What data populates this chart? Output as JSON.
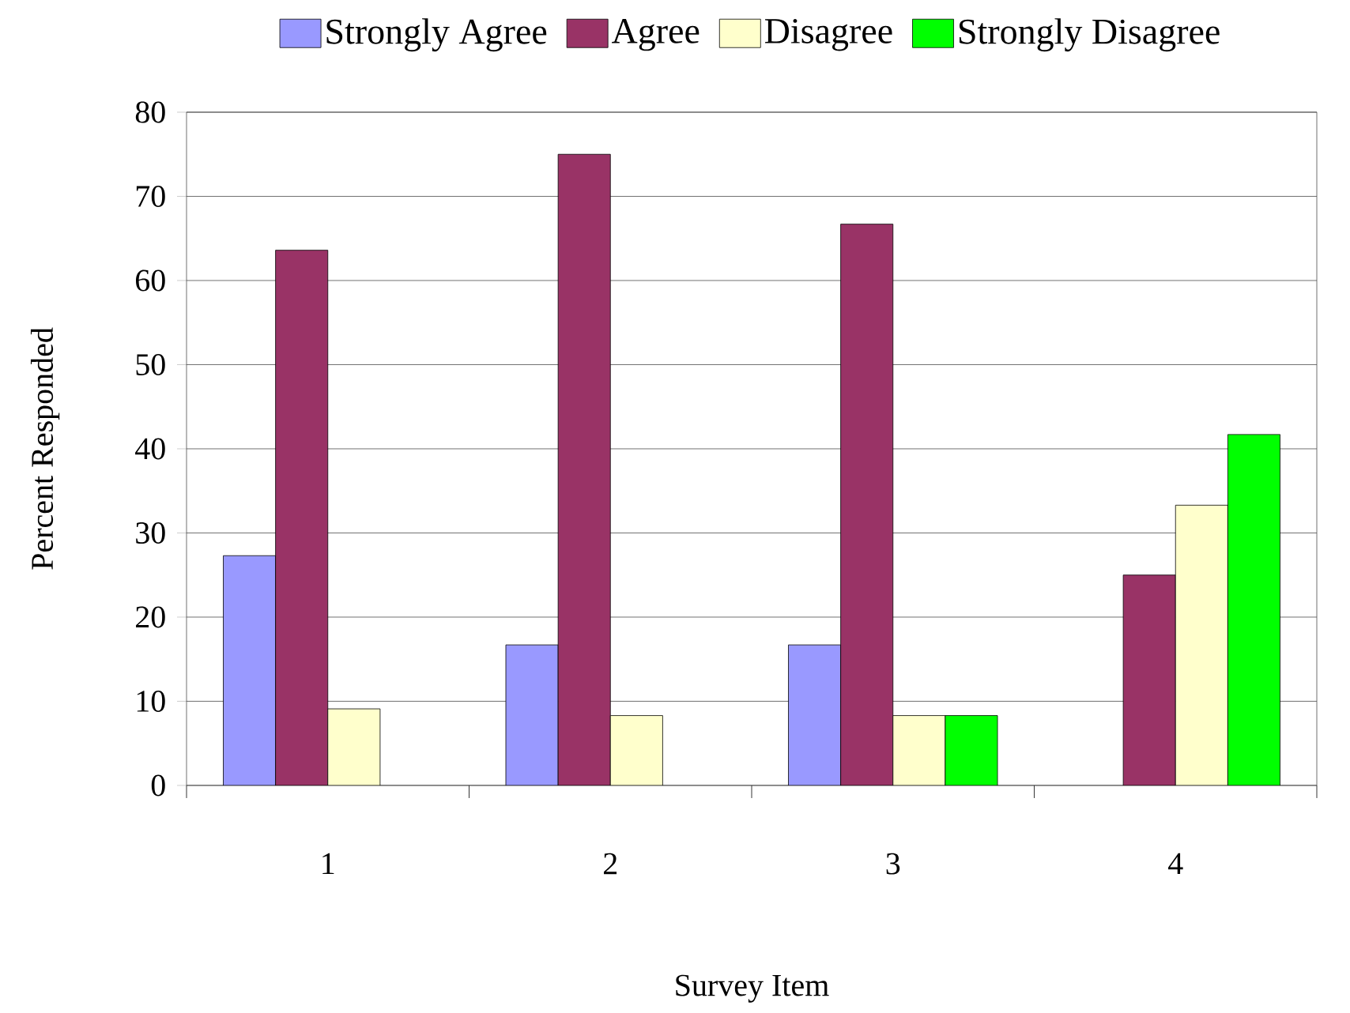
{
  "chart_data": {
    "type": "bar",
    "xlabel": "Survey Item",
    "ylabel": "Percent Responded",
    "categories": [
      "1",
      "2",
      "3",
      "4"
    ],
    "series": [
      {
        "name": "Strongly Agree",
        "color": "#9999ff",
        "values": [
          27.3,
          16.7,
          16.7,
          null
        ]
      },
      {
        "name": "Agree",
        "color": "#993366",
        "values": [
          63.6,
          75,
          66.7,
          25
        ]
      },
      {
        "name": "Disagree",
        "color": "#ffffcc",
        "values": [
          9.1,
          8.3,
          8.3,
          33.3
        ]
      },
      {
        "name": "Strongly Disagree",
        "color": "#00ff00",
        "values": [
          null,
          null,
          8.3,
          41.7
        ]
      }
    ],
    "ylim": [
      0,
      80
    ],
    "yticks": [
      0,
      10,
      20,
      30,
      40,
      50,
      60,
      70,
      80
    ],
    "grid": "y",
    "legend": "top"
  }
}
